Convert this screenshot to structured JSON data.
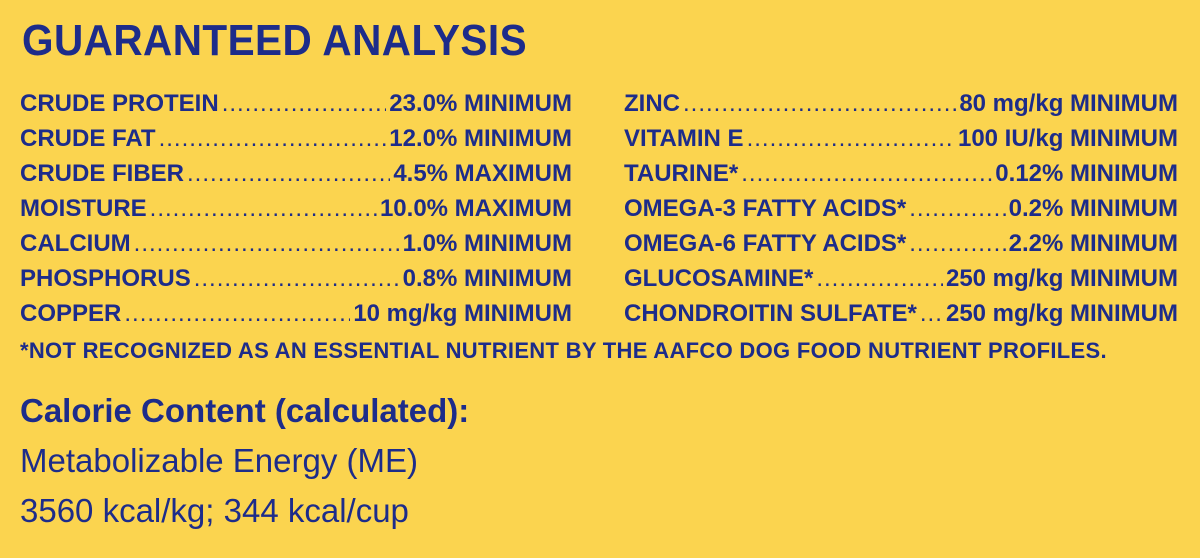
{
  "title": "GUARANTEED ANALYSIS",
  "left_column": [
    {
      "name": "CRUDE PROTEIN",
      "value": "23.0% MINIMUM"
    },
    {
      "name": "CRUDE FAT",
      "value": "12.0% MINIMUM"
    },
    {
      "name": "CRUDE FIBER",
      "value": "4.5% MAXIMUM"
    },
    {
      "name": "MOISTURE",
      "value": "10.0% MAXIMUM"
    },
    {
      "name": "CALCIUM",
      "value": "1.0% MINIMUM"
    },
    {
      "name": "PHOSPHORUS",
      "value": "0.8% MINIMUM"
    },
    {
      "name": "COPPER",
      "value": "10 mg/kg MINIMUM"
    }
  ],
  "right_column": [
    {
      "name": "ZINC",
      "value": "80 mg/kg MINIMUM"
    },
    {
      "name": "VITAMIN E",
      "value": "100 IU/kg MINIMUM"
    },
    {
      "name": "TAURINE*",
      "value": "0.12% MINIMUM"
    },
    {
      "name": "OMEGA-3 FATTY ACIDS*",
      "value": "0.2% MINIMUM"
    },
    {
      "name": "OMEGA-6 FATTY ACIDS*",
      "value": "2.2% MINIMUM"
    },
    {
      "name": "GLUCOSAMINE*",
      "value": "250 mg/kg MINIMUM"
    },
    {
      "name": "CHONDROITIN SULFATE*",
      "value": "250 mg/kg MINIMUM"
    }
  ],
  "footnote": "*NOT RECOGNIZED AS AN ESSENTIAL NUTRIENT BY THE AAFCO DOG FOOD NUTRIENT PROFILES.",
  "calorie": {
    "heading": "Calorie Content (calculated):",
    "line1": "Metabolizable Energy (ME)",
    "line2": "3560 kcal/kg; 344 kcal/cup"
  },
  "colors": {
    "background": "#fbd44f",
    "text": "#1d2c8a"
  }
}
